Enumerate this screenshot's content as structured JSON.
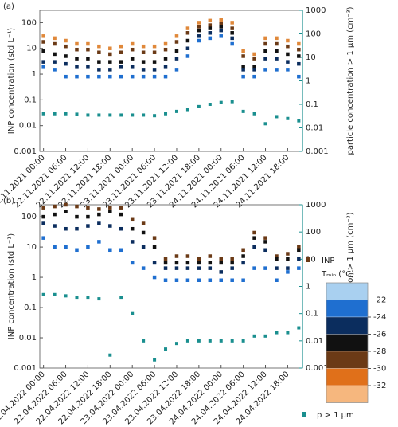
{
  "chart_data": [
    {
      "type": "scatter",
      "panel_label": "(a)",
      "y_label": "INP concentration (std L⁻¹)",
      "y2_label": "particle concentration > 1 µm (cm⁻³)",
      "log_scale": true,
      "x": [
        "22.11.2021 00:00",
        "22.11.2021 03:00",
        "22.11.2021 06:00",
        "22.11.2021 09:00",
        "22.11.2021 12:00",
        "22.11.2021 15:00",
        "22.11.2021 18:00",
        "22.11.2021 21:00",
        "23.11.2021 00:00",
        "23.11.2021 03:00",
        "23.11.2021 06:00",
        "23.11.2021 09:00",
        "23.11.2021 12:00",
        "23.11.2021 15:00",
        "23.11.2021 18:00",
        "23.11.2021 21:00",
        "24.11.2021 00:00",
        "24.11.2021 03:00",
        "24.11.2021 06:00",
        "24.11.2021 09:00",
        "24.11.2021 12:00",
        "24.11.2021 15:00",
        "24.11.2021 18:00",
        "24.11.2021 21:00"
      ],
      "xlim": [
        "21.11.2021 23:00",
        "24.11.2021 22:00"
      ],
      "xticks": [
        "22.11.2021 00:00",
        "22.11.2021 06:00",
        "22.11.2021 12:00",
        "22.11.2021 18:00",
        "23.11.2021 00:00",
        "23.11.2021 06:00",
        "23.11.2021 12:00",
        "23.11.2021 18:00",
        "24.11.2021 00:00",
        "24.11.2021 06:00",
        "24.11.2021 12:00",
        "24.11.2021 18:00"
      ],
      "ylim": [
        0.001,
        300
      ],
      "yticks": [
        0.001,
        0.01,
        0.1,
        1,
        10,
        100
      ],
      "y2lim": [
        0.001,
        1000
      ],
      "y2ticks": [
        0.001,
        0.01,
        0.1,
        1,
        10,
        100,
        1000
      ],
      "series": [
        {
          "color": "#e0883a",
          "values": [
            30,
            25,
            20,
            15,
            15,
            12,
            10,
            12,
            15,
            12,
            12,
            15,
            30,
            60,
            100,
            120,
            130,
            100,
            8,
            6,
            25,
            25,
            20,
            15
          ]
        },
        {
          "color": "#6b3a16",
          "values": [
            18,
            15,
            12,
            9,
            9,
            7,
            6,
            7,
            9,
            7,
            7,
            9,
            18,
            40,
            70,
            80,
            90,
            60,
            5,
            4,
            15,
            15,
            12,
            9
          ]
        },
        {
          "color": "#111111",
          "values": [
            8,
            6,
            5,
            4,
            4,
            3,
            3,
            3,
            4,
            3,
            3,
            4,
            8,
            20,
            50,
            60,
            70,
            40,
            2,
            2,
            8,
            8,
            6,
            5
          ]
        },
        {
          "color": "#0b2d5e",
          "values": [
            3,
            3,
            2.5,
            2,
            2,
            1.5,
            1.5,
            2,
            2,
            1.5,
            1.5,
            2,
            4,
            10,
            30,
            40,
            50,
            25,
            1.5,
            1.5,
            4,
            4,
            3,
            2.5
          ]
        },
        {
          "color": "#1f6fd0",
          "values": [
            2,
            1.5,
            0.8,
            0.8,
            0.8,
            0.8,
            0.8,
            0.8,
            0.8,
            0.8,
            0.8,
            0.8,
            1.5,
            5,
            20,
            25,
            30,
            15,
            0.8,
            0.8,
            1.5,
            1.5,
            1.5,
            0.8
          ]
        },
        {
          "color": "#1a8f8f",
          "axis": "y2",
          "values": [
            0.04,
            0.04,
            0.04,
            0.038,
            0.035,
            0.035,
            0.035,
            0.035,
            0.035,
            0.035,
            0.033,
            0.04,
            0.05,
            0.06,
            0.08,
            0.1,
            0.12,
            0.13,
            0.05,
            0.04,
            0.015,
            0.03,
            0.025,
            0.02
          ]
        }
      ]
    },
    {
      "type": "scatter",
      "panel_label": "(b)",
      "y_label": "INP concentration (std L⁻¹)",
      "y2_label": "particle concentration > 1 µm (cm⁻³)",
      "log_scale": true,
      "x": [
        "22.04.2022 00:00",
        "22.04.2022 03:00",
        "22.04.2022 06:00",
        "22.04.2022 09:00",
        "22.04.2022 12:00",
        "22.04.2022 15:00",
        "22.04.2022 18:00",
        "22.04.2022 21:00",
        "23.04.2022 00:00",
        "23.04.2022 03:00",
        "23.04.2022 06:00",
        "23.04.2022 09:00",
        "23.04.2022 12:00",
        "23.04.2022 15:00",
        "23.04.2022 18:00",
        "23.04.2022 21:00",
        "24.04.2022 00:00",
        "24.04.2022 03:00",
        "24.04.2022 06:00",
        "24.04.2022 09:00",
        "24.04.2022 12:00",
        "24.04.2022 15:00",
        "24.04.2022 18:00",
        "24.04.2022 21:00"
      ],
      "xlim": [
        "21.04.2022 23:00",
        "24.04.2022 22:00"
      ],
      "xticks": [
        "22.04.2022 00:00",
        "22.04.2022 06:00",
        "22.04.2022 12:00",
        "22.04.2022 18:00",
        "23.04.2022 00:00",
        "23.04.2022 06:00",
        "23.04.2022 12:00",
        "23.04.2022 18:00",
        "24.04.2022 00:00",
        "24.04.2022 06:00",
        "24.04.2022 12:00",
        "24.04.2022 18:00"
      ],
      "ylim": [
        0.001,
        250
      ],
      "yticks": [
        0.001,
        0.01,
        0.1,
        1,
        10,
        100
      ],
      "y2lim": [
        0.001,
        1000
      ],
      "y2ticks": [
        0.001,
        0.01,
        0.1,
        1,
        10,
        100,
        1000
      ],
      "series": [
        {
          "color": "#6b3a16",
          "values": [
            200,
            220,
            250,
            220,
            200,
            180,
            200,
            200,
            80,
            60,
            20,
            4,
            5,
            5,
            4,
            5,
            4,
            4,
            8,
            30,
            20,
            5,
            6,
            10
          ]
        },
        {
          "color": "#111111",
          "values": [
            100,
            120,
            150,
            100,
            100,
            120,
            150,
            120,
            40,
            30,
            10,
            3,
            3,
            3,
            3,
            3,
            3,
            3,
            5,
            20,
            15,
            4,
            4,
            8
          ]
        },
        {
          "color": "#0b2d5e",
          "values": [
            60,
            50,
            40,
            40,
            50,
            60,
            50,
            40,
            15,
            10,
            3,
            2,
            2,
            2,
            2,
            2,
            1.5,
            2,
            3,
            10,
            8,
            2,
            2,
            4
          ]
        },
        {
          "color": "#1f6fd0",
          "values": [
            20,
            10,
            10,
            8,
            10,
            15,
            8,
            8,
            3,
            2,
            1,
            0.8,
            0.8,
            0.8,
            0.8,
            0.8,
            0.8,
            0.8,
            0.8,
            2,
            2,
            0.8,
            1.5,
            2
          ]
        },
        {
          "color": "#1a8f8f",
          "axis": "y2",
          "values": [
            0.5,
            0.5,
            0.45,
            0.4,
            0.4,
            0.35,
            0.003,
            0.4,
            0.1,
            0.01,
            0.002,
            0.005,
            0.008,
            0.01,
            0.01,
            0.01,
            0.01,
            0.01,
            0.01,
            0.015,
            0.015,
            0.02,
            0.02,
            0.03
          ]
        }
      ]
    }
  ],
  "legend": {
    "inp_label": "INP",
    "inp_color": "#6b3a16",
    "tmin_label": "Tₘᵢₙ (°C)",
    "colorbar": {
      "ticks": [
        -22,
        -24,
        -26,
        -28,
        -30,
        -32
      ],
      "colors": [
        "#a9d0f0",
        "#1f6fd0",
        "#0b2d5e",
        "#111111",
        "#6b3a16",
        "#e0701a",
        "#f6b77e"
      ]
    },
    "particle_label": "p > 1 µm",
    "particle_color": "#1a8f8f"
  }
}
